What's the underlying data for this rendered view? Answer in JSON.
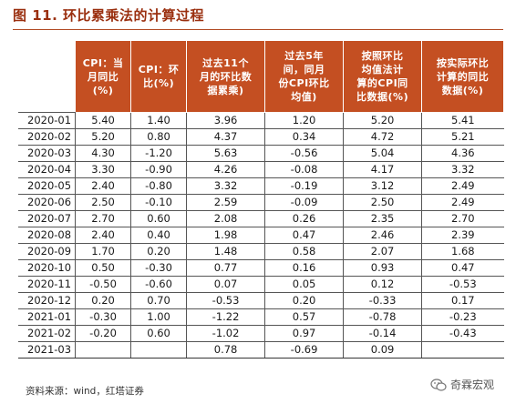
{
  "figure_title": "图 11. 环比累乘法的计算过程",
  "columns": [
    "",
    "CPI：当月同比(%)",
    "CPI：环比(%)",
    "过去11个月的环比数据累乘)",
    "过去5年间，同月份CPI环比均值)",
    "按照环比均值法计算的CPI同比数据(%)",
    "按实际环比计算的同比数据(%)"
  ],
  "header_lines": [
    [],
    [
      "CPI：当",
      "月同比",
      "(%)"
    ],
    [
      "CPI：环",
      "比(%)"
    ],
    [
      "过去11个",
      "月的环比数",
      "据累乘)"
    ],
    [
      "过去5年",
      "间，同月",
      "份CPI环比",
      "均值)"
    ],
    [
      "按照环比",
      "均值法计",
      "算的CPI同",
      "比数据(%)"
    ],
    [
      "按实际环比",
      "计算的同比",
      "数据(%)"
    ]
  ],
  "rows": [
    [
      "2020-01",
      "5.40",
      "1.40",
      "3.96",
      "1.20",
      "5.20",
      "5.41"
    ],
    [
      "2020-02",
      "5.20",
      "0.80",
      "4.37",
      "0.34",
      "4.72",
      "5.21"
    ],
    [
      "2020-03",
      "4.30",
      "-1.20",
      "5.63",
      "-0.56",
      "5.04",
      "4.36"
    ],
    [
      "2020-04",
      "3.30",
      "-0.90",
      "4.26",
      "-0.08",
      "4.17",
      "3.32"
    ],
    [
      "2020-05",
      "2.40",
      "-0.80",
      "3.32",
      "-0.19",
      "3.12",
      "2.49"
    ],
    [
      "2020-06",
      "2.50",
      "-0.10",
      "2.59",
      "-0.09",
      "2.50",
      "2.49"
    ],
    [
      "2020-07",
      "2.70",
      "0.60",
      "2.08",
      "0.26",
      "2.35",
      "2.70"
    ],
    [
      "2020-08",
      "2.40",
      "0.40",
      "1.98",
      "0.47",
      "2.46",
      "2.39"
    ],
    [
      "2020-09",
      "1.70",
      "0.20",
      "1.48",
      "0.58",
      "2.07",
      "1.68"
    ],
    [
      "2020-10",
      "0.50",
      "-0.30",
      "0.77",
      "0.16",
      "0.93",
      "0.47"
    ],
    [
      "2020-11",
      "-0.50",
      "-0.60",
      "0.07",
      "0.05",
      "0.12",
      "-0.53"
    ],
    [
      "2020-12",
      "0.20",
      "0.70",
      "-0.53",
      "0.20",
      "-0.33",
      "0.17"
    ],
    [
      "2021-01",
      "-0.30",
      "1.00",
      "-1.22",
      "0.57",
      "-0.78",
      "-0.23"
    ],
    [
      "2021-02",
      "-0.20",
      "0.60",
      "-1.02",
      "0.97",
      "-0.14",
      "-0.43"
    ],
    [
      "2021-03",
      "",
      "",
      "0.78",
      "-0.69",
      "0.09",
      ""
    ]
  ],
  "source": "资料来源：wind，红塔证券",
  "watermark": "奇霖宏观",
  "colors": {
    "header_bg": "#c44f22",
    "title": "#9a2f0f"
  },
  "icons": {
    "watermark": "wechat-icon"
  }
}
